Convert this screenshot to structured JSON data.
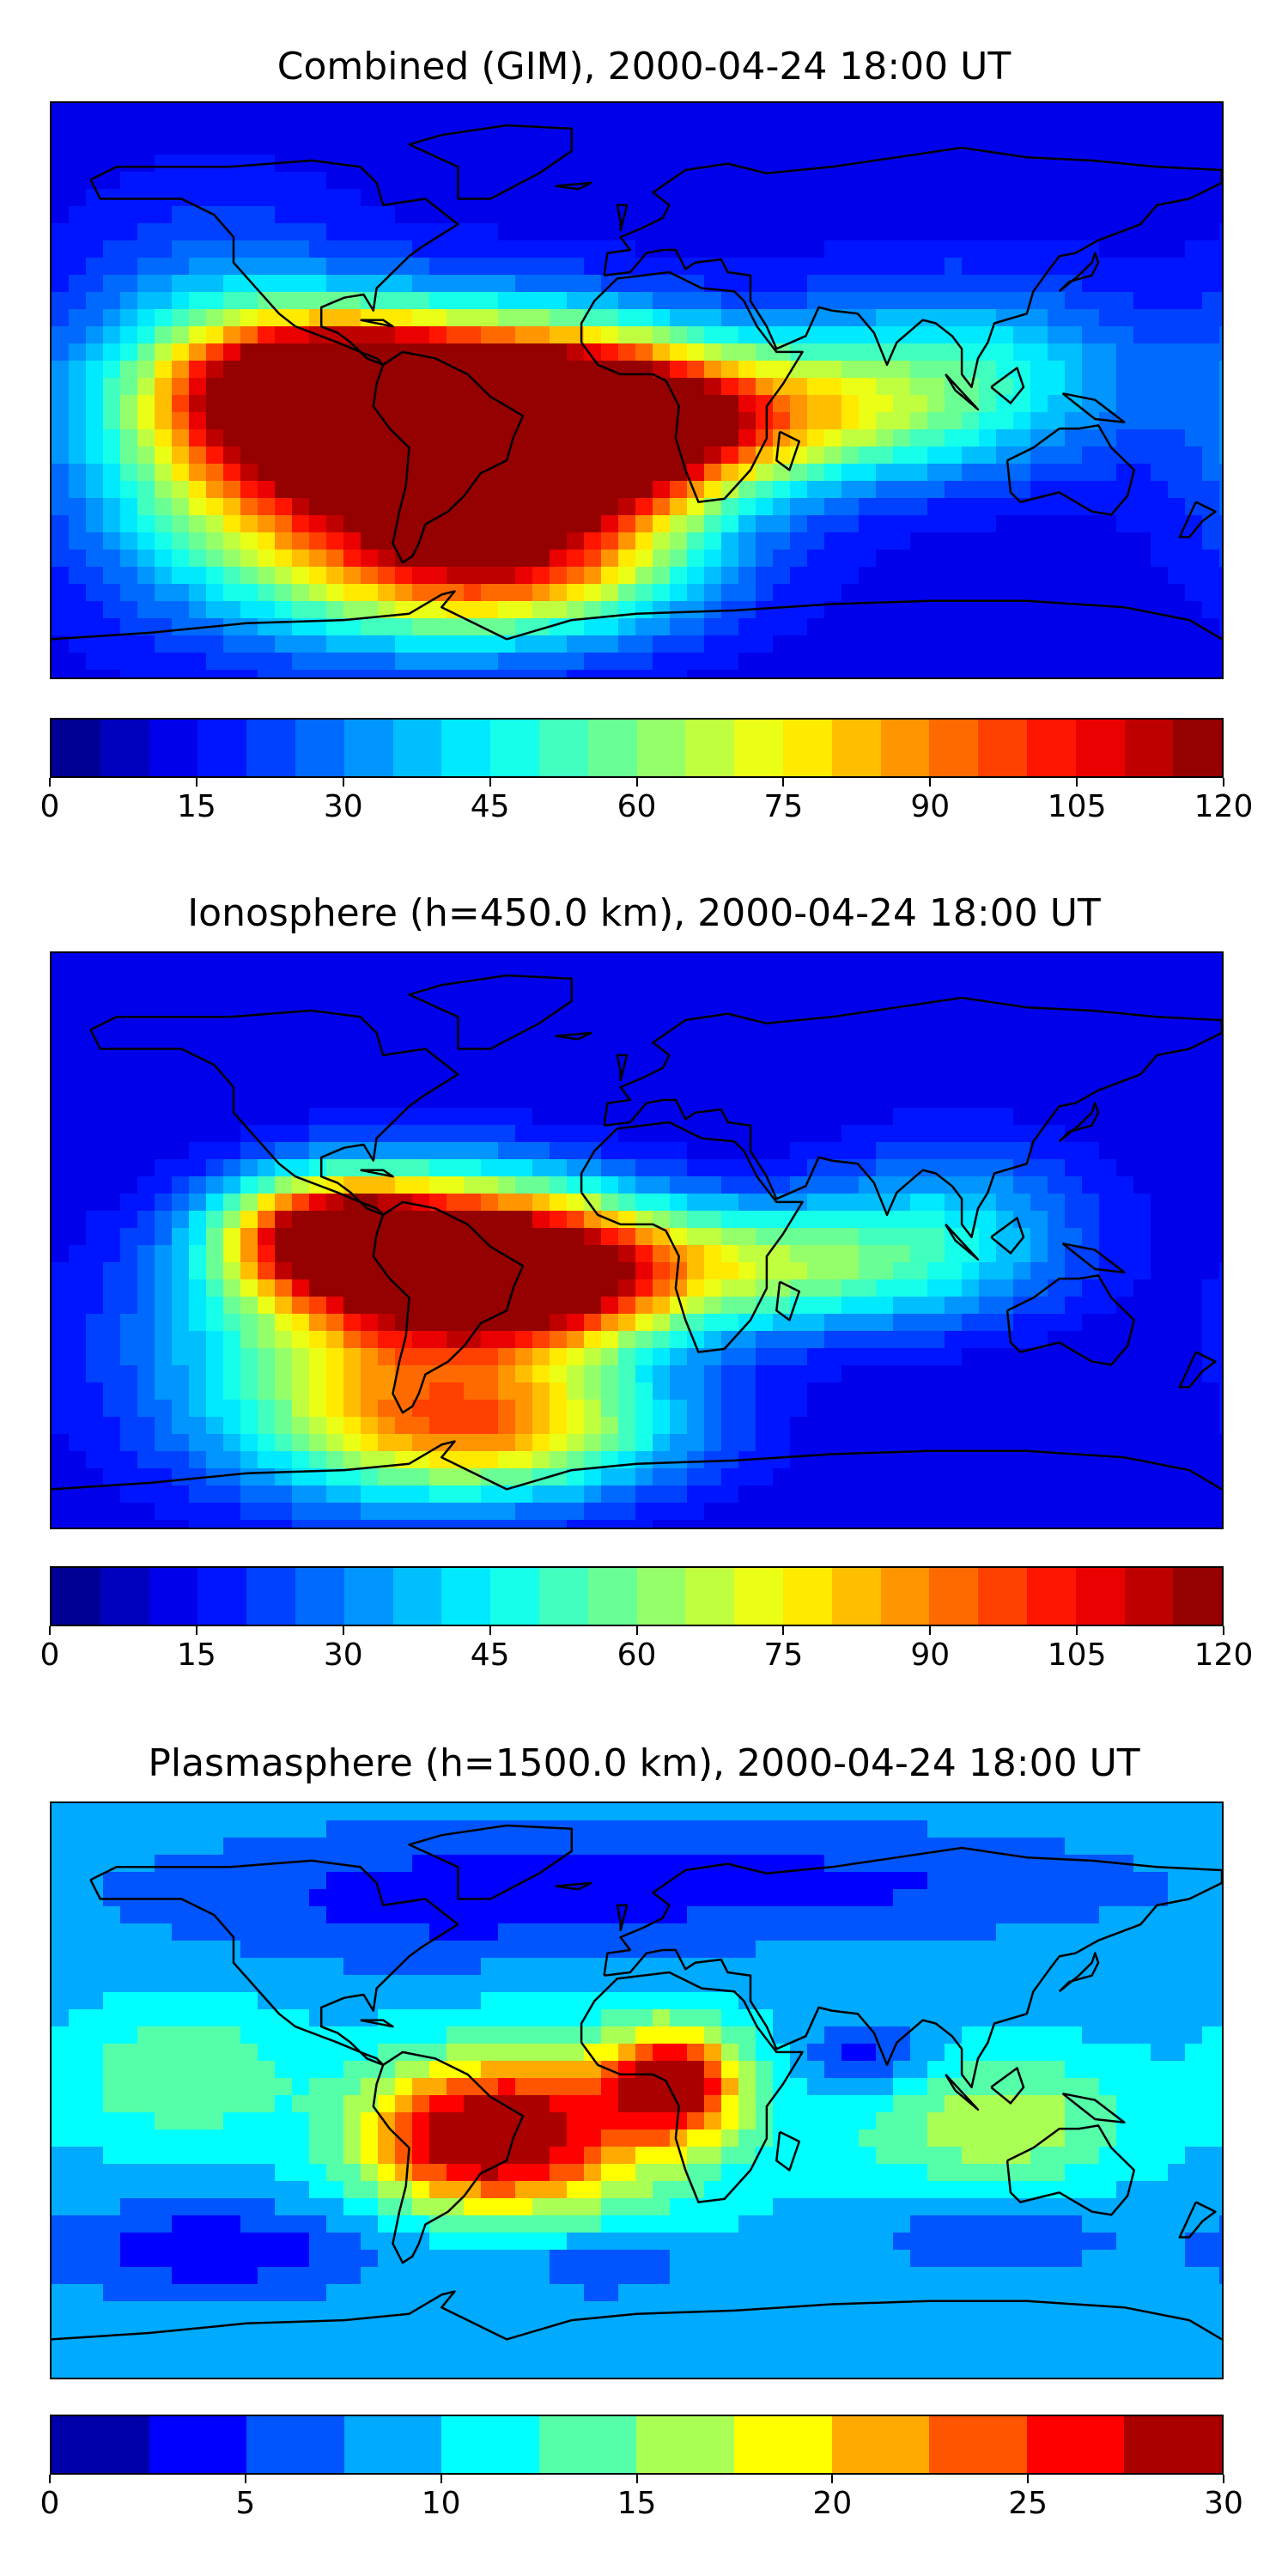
{
  "chart_data": [
    {
      "type": "heatmap",
      "title": "Combined (GIM), 2000-04-24 18:00 UT",
      "colorbar": {
        "min": 0,
        "max": 120,
        "levels": 24,
        "ticks": [
          "0",
          "15",
          "30",
          "45",
          "60",
          "75",
          "90",
          "105",
          "120"
        ]
      },
      "background_value": 12,
      "blobs": [
        {
          "lon": -55,
          "lat": -10,
          "value": 112,
          "slon": 45,
          "slat": 20
        },
        {
          "lon": -15,
          "lat": -12,
          "value": 104,
          "slon": 30,
          "slat": 18
        },
        {
          "lon": -95,
          "lat": 2,
          "value": 92,
          "slon": 30,
          "slat": 14
        },
        {
          "lon": -75,
          "lat": -30,
          "value": 78,
          "slon": 50,
          "slat": 30
        },
        {
          "lon": -40,
          "lat": -55,
          "value": 70,
          "slon": 40,
          "slat": 15
        },
        {
          "lon": 40,
          "lat": -8,
          "value": 62,
          "slon": 40,
          "slat": 15
        },
        {
          "lon": 100,
          "lat": 5,
          "value": 45,
          "slon": 40,
          "slat": 20
        },
        {
          "lon": -130,
          "lat": 0,
          "value": 40,
          "slon": 30,
          "slat": 35
        }
      ]
    },
    {
      "type": "heatmap",
      "title": "Ionosphere  (h=450.0 km), 2000-04-24 18:00 UT",
      "colorbar": {
        "min": 0,
        "max": 120,
        "levels": 24,
        "ticks": [
          "0",
          "15",
          "30",
          "45",
          "60",
          "75",
          "90",
          "105",
          "120"
        ]
      },
      "background_value": 10,
      "blobs": [
        {
          "lon": -95,
          "lat": 2,
          "value": 90,
          "slon": 22,
          "slat": 12
        },
        {
          "lon": -30,
          "lat": -10,
          "value": 84,
          "slon": 30,
          "slat": 15
        },
        {
          "lon": -60,
          "lat": -5,
          "value": 80,
          "slon": 35,
          "slat": 18
        },
        {
          "lon": -75,
          "lat": -35,
          "value": 65,
          "slon": 50,
          "slat": 30
        },
        {
          "lon": 40,
          "lat": -8,
          "value": 58,
          "slon": 40,
          "slat": 14
        },
        {
          "lon": -45,
          "lat": -60,
          "value": 60,
          "slon": 40,
          "slat": 14
        },
        {
          "lon": 100,
          "lat": 5,
          "value": 35,
          "slon": 30,
          "slat": 20
        }
      ]
    },
    {
      "type": "heatmap",
      "title": "Plasmasphere (h=1500.0 km), 2000-04-24 18:00 UT",
      "colorbar": {
        "min": 0,
        "max": 30,
        "levels": 12,
        "ticks": [
          "0",
          "5",
          "10",
          "15",
          "20",
          "25",
          "30"
        ]
      },
      "background_value": 9,
      "blobs": [
        {
          "lon": -50,
          "lat": -15,
          "value": 26,
          "slon": 25,
          "slat": 15
        },
        {
          "lon": 12,
          "lat": 3,
          "value": 26,
          "slon": 14,
          "slat": 12
        },
        {
          "lon": -20,
          "lat": -10,
          "value": 19,
          "slon": 35,
          "slat": 20
        },
        {
          "lon": 110,
          "lat": -10,
          "value": 17,
          "slon": 30,
          "slat": 15
        },
        {
          "lon": -140,
          "lat": 5,
          "value": 15,
          "slon": 25,
          "slat": 15
        },
        {
          "lon": 70,
          "lat": 10,
          "value": 3,
          "slon": 14,
          "slat": 8
        },
        {
          "lon": -130,
          "lat": -50,
          "value": 3,
          "slon": 35,
          "slat": 10
        },
        {
          "lon": -60,
          "lat": 60,
          "value": 4,
          "slon": 60,
          "slat": 15
        },
        {
          "lon": 70,
          "lat": 65,
          "value": 5,
          "slon": 60,
          "slat": 12
        },
        {
          "lon": -10,
          "lat": -55,
          "value": 4,
          "slon": 15,
          "slat": 6
        },
        {
          "lon": 110,
          "lat": -45,
          "value": 5,
          "slon": 25,
          "slat": 8
        }
      ]
    }
  ]
}
